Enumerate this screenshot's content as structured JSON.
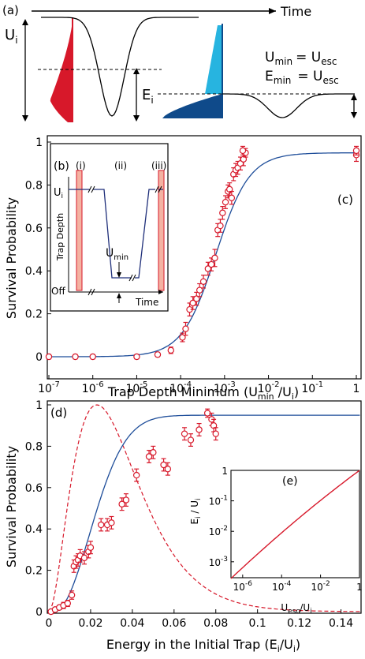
{
  "panel_a": {
    "label": "(a)",
    "time_label": "Time",
    "ui_label": "U",
    "ui_sub": "i",
    "ei_label": "E",
    "ei_sub": "i",
    "eq1_lhs": "U",
    "eq1_lhs_sub": "min",
    "eq1_rhs": "= U",
    "eq1_rhs_sub": "esc",
    "eq2_lhs": "E",
    "eq2_lhs_sub": "min",
    "eq2_rhs": "= U",
    "eq2_rhs_sub": "esc",
    "colors": {
      "red": "#d7182a",
      "light_blue": "#27b4e0",
      "dark_blue": "#0f4a8a"
    }
  },
  "panel_b": {
    "label": "(b)",
    "phases": [
      "(i)",
      "(ii)",
      "(iii)"
    ],
    "ylabel": "Trap Depth",
    "ui_label": "U",
    "ui_sub": "i",
    "off_label": "Off",
    "umin_label": "U",
    "umin_sub": "min",
    "time_label": "Time"
  },
  "chart_data": [
    {
      "panel": "(c)",
      "type": "scatter",
      "xscale": "log",
      "xlim": [
        1e-07,
        1
      ],
      "ylim": [
        0,
        1
      ],
      "x_ticks": [
        "10",
        "10",
        "10",
        "10",
        "10",
        "10",
        "10",
        "1"
      ],
      "x_tick_exps": [
        "-7",
        "-6",
        "-5",
        "-4",
        "-3",
        "-2",
        "-1",
        ""
      ],
      "y_ticks": [
        "0",
        "0.2",
        "0.4",
        "0.6",
        "0.8",
        "1"
      ],
      "ylabel": "Survival Probability",
      "xlabel_main": "Trap Depth Minimum (U",
      "xlabel_sub1": "min",
      "xlabel_mid": " /U",
      "xlabel_sub2": "i",
      "xlabel_end": ")",
      "points": [
        [
          1e-07,
          0.0,
          0.01
        ],
        [
          4e-07,
          0.0,
          0.01
        ],
        [
          1e-06,
          0.0,
          0.01
        ],
        [
          1e-05,
          0.0,
          0.01
        ],
        [
          3e-05,
          0.01,
          0.01
        ],
        [
          6e-05,
          0.03,
          0.015
        ],
        [
          0.00011,
          0.09,
          0.02
        ],
        [
          0.00013,
          0.13,
          0.03
        ],
        [
          0.00016,
          0.22,
          0.03
        ],
        [
          0.00019,
          0.25,
          0.03
        ],
        [
          0.00023,
          0.27,
          0.03
        ],
        [
          0.00027,
          0.31,
          0.03
        ],
        [
          0.00033,
          0.35,
          0.03
        ],
        [
          0.00042,
          0.41,
          0.03
        ],
        [
          0.0005,
          0.43,
          0.03
        ],
        [
          0.0006,
          0.46,
          0.04
        ],
        [
          0.0007,
          0.59,
          0.03
        ],
        [
          0.0008,
          0.61,
          0.03
        ],
        [
          0.0009,
          0.67,
          0.03
        ],
        [
          0.00105,
          0.72,
          0.03
        ],
        [
          0.0012,
          0.77,
          0.03
        ],
        [
          0.0013,
          0.78,
          0.03
        ],
        [
          0.00145,
          0.74,
          0.03
        ],
        [
          0.0016,
          0.85,
          0.03
        ],
        [
          0.0018,
          0.87,
          0.03
        ],
        [
          0.002,
          0.88,
          0.03
        ],
        [
          0.0023,
          0.9,
          0.03
        ],
        [
          0.0027,
          0.92,
          0.03
        ],
        [
          0.003,
          0.95,
          0.02
        ],
        [
          0.0026,
          0.96,
          0.02
        ],
        [
          1,
          0.94,
          0.03
        ],
        [
          1,
          0.96,
          0.02
        ]
      ],
      "fit": {
        "plateau": 0.95,
        "center_log10": -3.2,
        "width": 0.38
      }
    },
    {
      "panel": "(d)",
      "type": "scatter",
      "xlim": [
        0,
        0.15
      ],
      "ylim": [
        0,
        1
      ],
      "x_ticks": [
        "0",
        "0.02",
        "0.04",
        "0.06",
        "0.08",
        "0.1",
        "0.12",
        "0.14"
      ],
      "y_ticks": [
        "0",
        "0.2",
        "0.4",
        "0.6",
        "0.8",
        "1"
      ],
      "ylabel": "Survival Probability",
      "xlabel_main": "Energy in the Initial Trap (E",
      "xlabel_sub1": "i",
      "xlabel_mid": "/U",
      "xlabel_sub2": "i",
      "xlabel_end": ")",
      "points": [
        [
          0.001,
          0.0,
          0.01
        ],
        [
          0.003,
          0.01,
          0.01
        ],
        [
          0.005,
          0.02,
          0.01
        ],
        [
          0.007,
          0.03,
          0.015
        ],
        [
          0.009,
          0.04,
          0.015
        ],
        [
          0.011,
          0.08,
          0.02
        ],
        [
          0.012,
          0.22,
          0.03
        ],
        [
          0.013,
          0.24,
          0.03
        ],
        [
          0.014,
          0.25,
          0.03
        ],
        [
          0.015,
          0.27,
          0.03
        ],
        [
          0.017,
          0.26,
          0.03
        ],
        [
          0.019,
          0.29,
          0.03
        ],
        [
          0.02,
          0.31,
          0.03
        ],
        [
          0.025,
          0.42,
          0.03
        ],
        [
          0.028,
          0.42,
          0.03
        ],
        [
          0.03,
          0.43,
          0.03
        ],
        [
          0.035,
          0.52,
          0.03
        ],
        [
          0.037,
          0.54,
          0.03
        ],
        [
          0.042,
          0.66,
          0.03
        ],
        [
          0.048,
          0.75,
          0.03
        ],
        [
          0.05,
          0.77,
          0.03
        ],
        [
          0.055,
          0.71,
          0.03
        ],
        [
          0.057,
          0.69,
          0.03
        ],
        [
          0.065,
          0.86,
          0.03
        ],
        [
          0.068,
          0.83,
          0.03
        ],
        [
          0.072,
          0.88,
          0.03
        ],
        [
          0.076,
          0.96,
          0.02
        ],
        [
          0.078,
          0.93,
          0.03
        ],
        [
          0.079,
          0.9,
          0.03
        ],
        [
          0.08,
          0.86,
          0.03
        ]
      ],
      "fit": {
        "plateau": 0.95,
        "x0": 0.0025,
        "tau": 0.024,
        "power": 1.0
      },
      "dashed_peak_x": 0.023,
      "dashed_shape": 2.0
    },
    {
      "panel": "(e)",
      "type": "line",
      "xscale": "log",
      "yscale": "log",
      "xlim": [
        1e-07,
        1
      ],
      "ylim": [
        0.0003,
        1
      ],
      "x_ticks": [
        "10",
        "10",
        "10",
        "1"
      ],
      "x_tick_exps": [
        "-6",
        "-4",
        "-2",
        ""
      ],
      "y_ticks": [
        "1",
        "10",
        "10",
        "10"
      ],
      "y_tick_exps": [
        "",
        "-1",
        "-2",
        "-3"
      ],
      "ylabel_main": "E",
      "ylabel_sub1": "i",
      "ylabel_mid": " / U",
      "ylabel_sub2": "i",
      "xlabel_main": "U",
      "xlabel_sub1": "esc",
      "xlabel_mid": "/U",
      "xlabel_sub2": "i",
      "curve": {
        "x_start_log": -6.6,
        "y_start_log": -3.55,
        "x_end_log": 0,
        "y_end_log": 0,
        "curvature": 0.06
      }
    }
  ],
  "colors": {
    "marker": "#d7182a",
    "fit": "#1f4e9a",
    "dashed": "#d7182a",
    "inset_curve": "#d7182a"
  }
}
